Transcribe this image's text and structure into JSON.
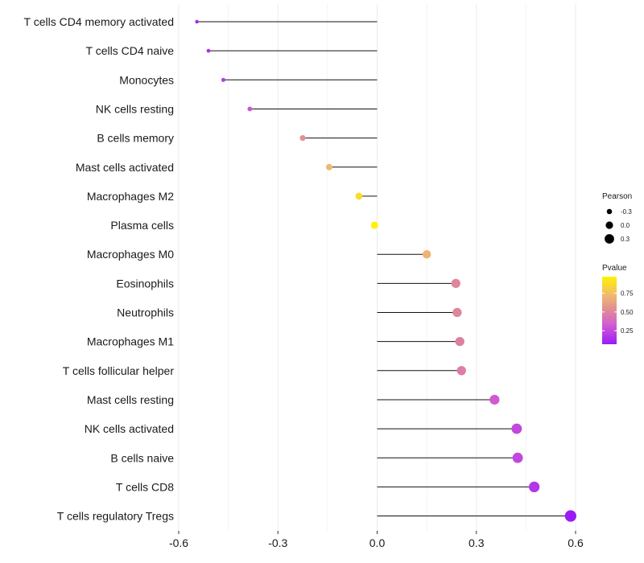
{
  "chart_data": {
    "type": "lollipop",
    "xlim": [
      -0.6,
      0.6
    ],
    "x_ticks": [
      -0.6,
      -0.3,
      0.0,
      0.3,
      0.6
    ],
    "x_tick_labels": [
      "-0.6",
      "-0.3",
      "0.0",
      "0.3",
      "0.6"
    ],
    "points": [
      {
        "label": "T cells CD4 memory activated",
        "pearson": -0.545,
        "pvalue": 0.12
      },
      {
        "label": "T cells CD4 naive",
        "pearson": -0.51,
        "pvalue": 0.15
      },
      {
        "label": "Monocytes",
        "pearson": -0.465,
        "pvalue": 0.2
      },
      {
        "label": "NK cells resting",
        "pearson": -0.385,
        "pvalue": 0.3
      },
      {
        "label": "B cells memory",
        "pearson": -0.225,
        "pvalue": 0.55
      },
      {
        "label": "Mast cells activated",
        "pearson": -0.145,
        "pvalue": 0.72
      },
      {
        "label": "Macrophages M2",
        "pearson": -0.055,
        "pvalue": 0.88
      },
      {
        "label": "Plasma cells",
        "pearson": -0.008,
        "pvalue": 0.97
      },
      {
        "label": "Macrophages M0",
        "pearson": 0.15,
        "pvalue": 0.7
      },
      {
        "label": "Eosinophils",
        "pearson": 0.238,
        "pvalue": 0.5
      },
      {
        "label": "Neutrophils",
        "pearson": 0.242,
        "pvalue": 0.5
      },
      {
        "label": "Macrophages M1",
        "pearson": 0.25,
        "pvalue": 0.48
      },
      {
        "label": "T cells follicular helper",
        "pearson": 0.255,
        "pvalue": 0.47
      },
      {
        "label": "Mast cells resting",
        "pearson": 0.355,
        "pvalue": 0.32
      },
      {
        "label": "NK cells activated",
        "pearson": 0.422,
        "pvalue": 0.25
      },
      {
        "label": "B cells naive",
        "pearson": 0.425,
        "pvalue": 0.25
      },
      {
        "label": "T cells CD8",
        "pearson": 0.475,
        "pvalue": 0.18
      },
      {
        "label": "T cells regulatory  Tregs",
        "pearson": 0.585,
        "pvalue": 0.07
      }
    ],
    "legend_size": {
      "title": "Pearson",
      "entries": [
        {
          "label": "-0.3",
          "value": -0.3
        },
        {
          "label": "0.0",
          "value": 0.0
        },
        {
          "label": "0.3",
          "value": 0.3
        }
      ]
    },
    "legend_color": {
      "title": "Pvalue",
      "range": [
        0.07,
        0.97
      ],
      "ticks": [
        {
          "label": "0.75",
          "value": 0.75
        },
        {
          "label": "0.50",
          "value": 0.5
        },
        {
          "label": "0.25",
          "value": 0.25
        }
      ],
      "colors": [
        "#9b1bf5",
        "#d45fd0",
        "#e08a96",
        "#f0b870",
        "#fff200"
      ]
    }
  }
}
